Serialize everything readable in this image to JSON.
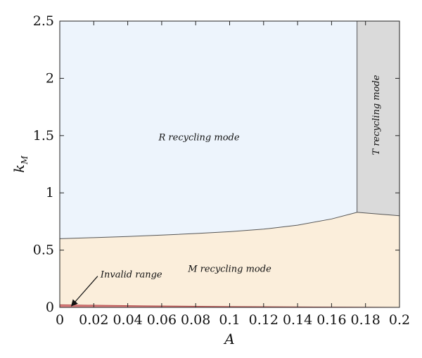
{
  "chart_data": {
    "type": "area",
    "xlabel": "A",
    "ylabel": {
      "base": "k",
      "sub": "M"
    },
    "xlim": [
      0,
      0.2
    ],
    "ylim": [
      0,
      2.5
    ],
    "xticks": [
      0,
      0.02,
      0.04,
      0.06,
      0.08,
      0.1,
      0.12,
      0.14,
      0.16,
      0.18,
      0.2
    ],
    "xtick_labels": [
      "0",
      "0.02",
      "0.04",
      "0.06",
      "0.08",
      "0.1",
      "0.12",
      "0.14",
      "0.16",
      "0.18",
      "0.2"
    ],
    "yticks": [
      0,
      0.5,
      1,
      1.5,
      2,
      2.5
    ],
    "ytick_labels": [
      "0",
      "0.5",
      "1",
      "1.5",
      "2",
      "2.5"
    ],
    "grid": false,
    "regions": [
      {
        "name": "R recycling mode",
        "color": "#edf4fc"
      },
      {
        "name": "T recycling mode",
        "color": "#dadada"
      },
      {
        "name": "M recycling mode",
        "color": "#fbeedb"
      },
      {
        "name": "Invalid range",
        "color": "#e08383"
      }
    ],
    "boundaries": {
      "m_r_boundary": {
        "x": [
          0,
          0.02,
          0.04,
          0.06,
          0.08,
          0.1,
          0.12,
          0.14,
          0.16,
          0.175
        ],
        "y": [
          0.6,
          0.609,
          0.619,
          0.631,
          0.645,
          0.661,
          0.683,
          0.718,
          0.772,
          0.83
        ]
      },
      "t_vertical": {
        "x": 0.175,
        "y_from": 0.83,
        "y_to": 2.5
      },
      "m_t_boundary": {
        "x": [
          0.175,
          0.2
        ],
        "y": [
          0.83,
          0.8
        ]
      },
      "invalid_upper": {
        "x": [
          0,
          0.05,
          0.1,
          0.15,
          0.2
        ],
        "y": [
          0.022,
          0.013,
          0.007,
          0.003,
          0.0
        ]
      }
    },
    "annotations": [
      {
        "key": "r_mode",
        "text": "R recycling mode",
        "x": 0.082,
        "y": 1.46
      },
      {
        "key": "m_mode",
        "text": "M recycling mode",
        "x": 0.1,
        "y": 0.31
      },
      {
        "key": "t_mode",
        "text": "T recycling mode",
        "x": 0.188,
        "y": 1.68
      },
      {
        "key": "invalid",
        "text": "Invalid range",
        "x": 0.019,
        "y": 0.26,
        "arrow_to": {
          "x": 0.006,
          "y": 0.0
        }
      }
    ]
  }
}
